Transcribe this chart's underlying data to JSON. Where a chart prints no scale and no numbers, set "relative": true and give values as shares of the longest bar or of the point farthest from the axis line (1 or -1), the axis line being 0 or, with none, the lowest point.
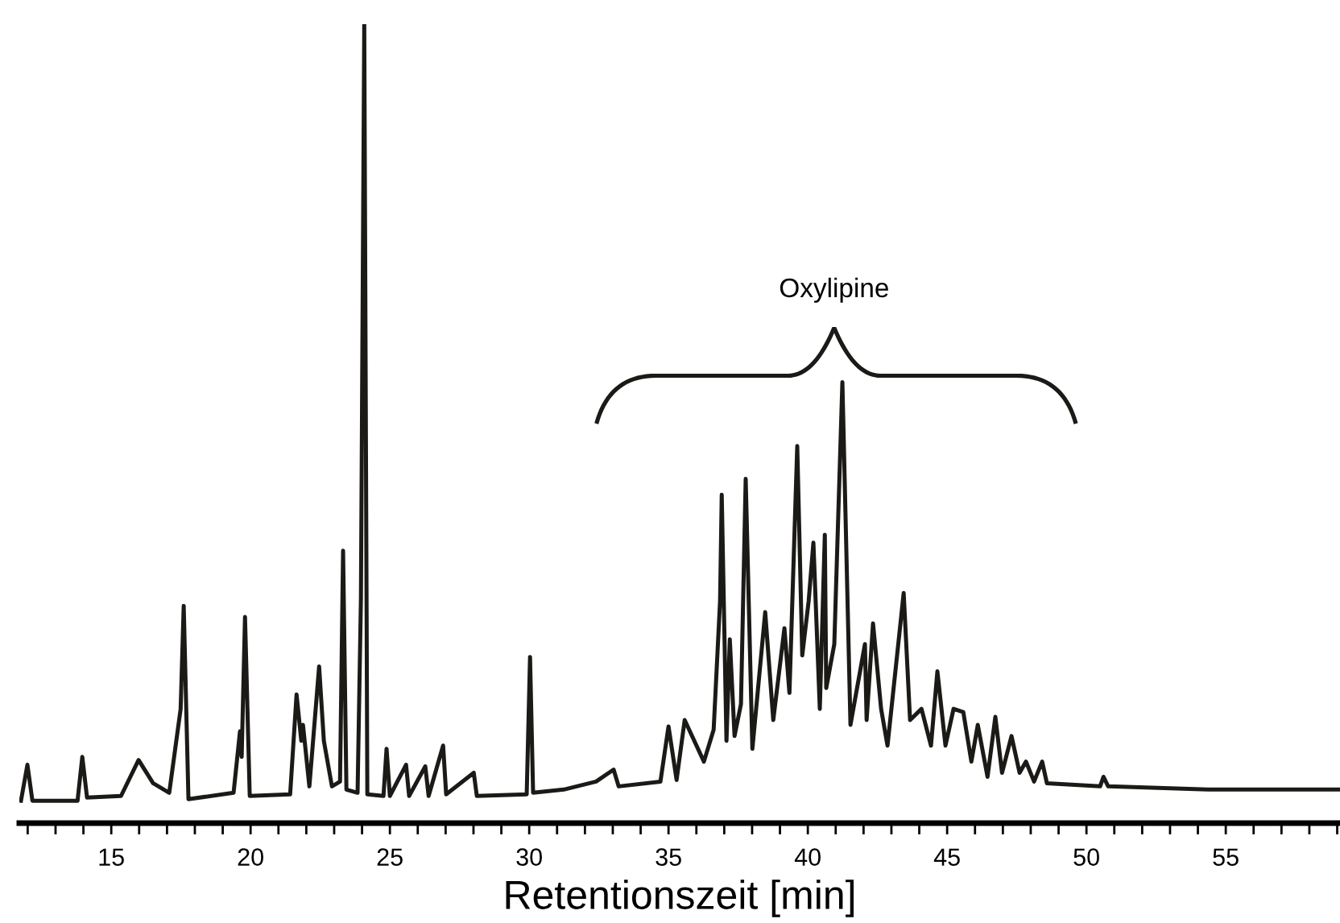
{
  "chart_data": {
    "type": "line",
    "relative": true,
    "xlabel": "Retentionszeit [min]",
    "xlim": [
      11.7,
      59.1
    ],
    "xticks": [
      {
        "value": 12,
        "label": null
      },
      {
        "value": 13,
        "label": null
      },
      {
        "value": 14,
        "label": null
      },
      15,
      {
        "value": 16,
        "label": null
      },
      {
        "value": 17,
        "label": null
      },
      {
        "value": 18,
        "label": null
      },
      {
        "value": 19,
        "label": null
      },
      20,
      {
        "value": 21,
        "label": null
      },
      {
        "value": 22,
        "label": null
      },
      {
        "value": 23,
        "label": null
      },
      {
        "value": 24,
        "label": null
      },
      25,
      {
        "value": 26,
        "label": null
      },
      {
        "value": 27,
        "label": null
      },
      {
        "value": 28,
        "label": null
      },
      {
        "value": 29,
        "label": null
      },
      30,
      {
        "value": 31,
        "label": null
      },
      {
        "value": 32,
        "label": null
      },
      {
        "value": 33,
        "label": null
      },
      {
        "value": 34,
        "label": null
      },
      35,
      {
        "value": 36,
        "label": null
      },
      {
        "value": 37,
        "label": null
      },
      {
        "value": 38,
        "label": null
      },
      {
        "value": 39,
        "label": null
      },
      40,
      {
        "value": 41,
        "label": null
      },
      {
        "value": 42,
        "label": null
      },
      {
        "value": 43,
        "label": null
      },
      {
        "value": 44,
        "label": null
      },
      45,
      {
        "value": 46,
        "label": null
      },
      {
        "value": 47,
        "label": null
      },
      {
        "value": 48,
        "label": null
      },
      {
        "value": 49,
        "label": null
      },
      50,
      {
        "value": 51,
        "label": null
      },
      {
        "value": 52,
        "label": null
      },
      {
        "value": 53,
        "label": null
      },
      {
        "value": 54,
        "label": null
      },
      55,
      {
        "value": 56,
        "label": null
      },
      {
        "value": 57,
        "label": null
      },
      {
        "value": 58,
        "label": null
      },
      {
        "value": 59,
        "label": null
      }
    ],
    "grid": false,
    "legend": false,
    "marker": "none",
    "line_style": "solid",
    "tick_labels": "x",
    "annotations": [
      "Oxylipine"
    ],
    "series": [
      {
        "color": "#1c1a17",
        "x": [
          11.76,
          11.99,
          12.17,
          13.79,
          13.96,
          14.13,
          15.35,
          15.98,
          16.5,
          17.08,
          17.49,
          17.6,
          17.77,
          19.39,
          19.62,
          19.68,
          19.8,
          19.97,
          21.42,
          21.65,
          21.82,
          21.88,
          22.11,
          22.46,
          22.63,
          22.92,
          23.21,
          23.32,
          23.44,
          23.84,
          23.96,
          24.08,
          24.19,
          24.77,
          24.88,
          25.0,
          25.58,
          25.69,
          26.27,
          26.39,
          26.91,
          27.02,
          28.01,
          28.12,
          29.91,
          30.03,
          30.14,
          31.24,
          32.4,
          33.03,
          33.21,
          34.71,
          35.0,
          35.29,
          35.58,
          36.27,
          36.62,
          36.85,
          36.91,
          37.08,
          37.2,
          37.37,
          37.6,
          37.77,
          38.01,
          38.47,
          38.76,
          39.16,
          39.34,
          39.62,
          39.8,
          40.03,
          40.2,
          40.43,
          40.61,
          40.66,
          40.95,
          41.24,
          41.53,
          42.05,
          42.11,
          42.34,
          42.63,
          42.86,
          43.44,
          43.67,
          44.08,
          44.42,
          44.65,
          44.94,
          45.23,
          45.58,
          45.87,
          46.1,
          46.45,
          46.73,
          46.97,
          47.31,
          47.6,
          47.83,
          48.12,
          48.41,
          48.58,
          50.49,
          50.61,
          50.78,
          54.36,
          59.1
        ],
        "values": [
          0.028,
          0.073,
          0.028,
          0.028,
          0.083,
          0.032,
          0.034,
          0.079,
          0.05,
          0.038,
          0.143,
          0.272,
          0.03,
          0.038,
          0.115,
          0.083,
          0.258,
          0.034,
          0.036,
          0.161,
          0.103,
          0.123,
          0.046,
          0.196,
          0.103,
          0.046,
          0.052,
          0.341,
          0.042,
          0.038,
          0.28,
          1,
          0.036,
          0.034,
          0.093,
          0.034,
          0.073,
          0.034,
          0.071,
          0.034,
          0.097,
          0.036,
          0.063,
          0.034,
          0.036,
          0.208,
          0.038,
          0.042,
          0.052,
          0.067,
          0.046,
          0.052,
          0.121,
          0.054,
          0.129,
          0.077,
          0.117,
          0.278,
          0.411,
          0.103,
          0.23,
          0.109,
          0.149,
          0.431,
          0.093,
          0.264,
          0.129,
          0.244,
          0.163,
          0.472,
          0.21,
          0.278,
          0.351,
          0.143,
          0.361,
          0.169,
          0.224,
          0.552,
          0.123,
          0.224,
          0.129,
          0.25,
          0.143,
          0.097,
          0.288,
          0.129,
          0.143,
          0.097,
          0.19,
          0.097,
          0.143,
          0.139,
          0.077,
          0.123,
          0.058,
          0.133,
          0.063,
          0.109,
          0.063,
          0.077,
          0.052,
          0.077,
          0.05,
          0.046,
          0.058,
          0.046,
          0.042,
          0.042
        ]
      }
    ]
  }
}
